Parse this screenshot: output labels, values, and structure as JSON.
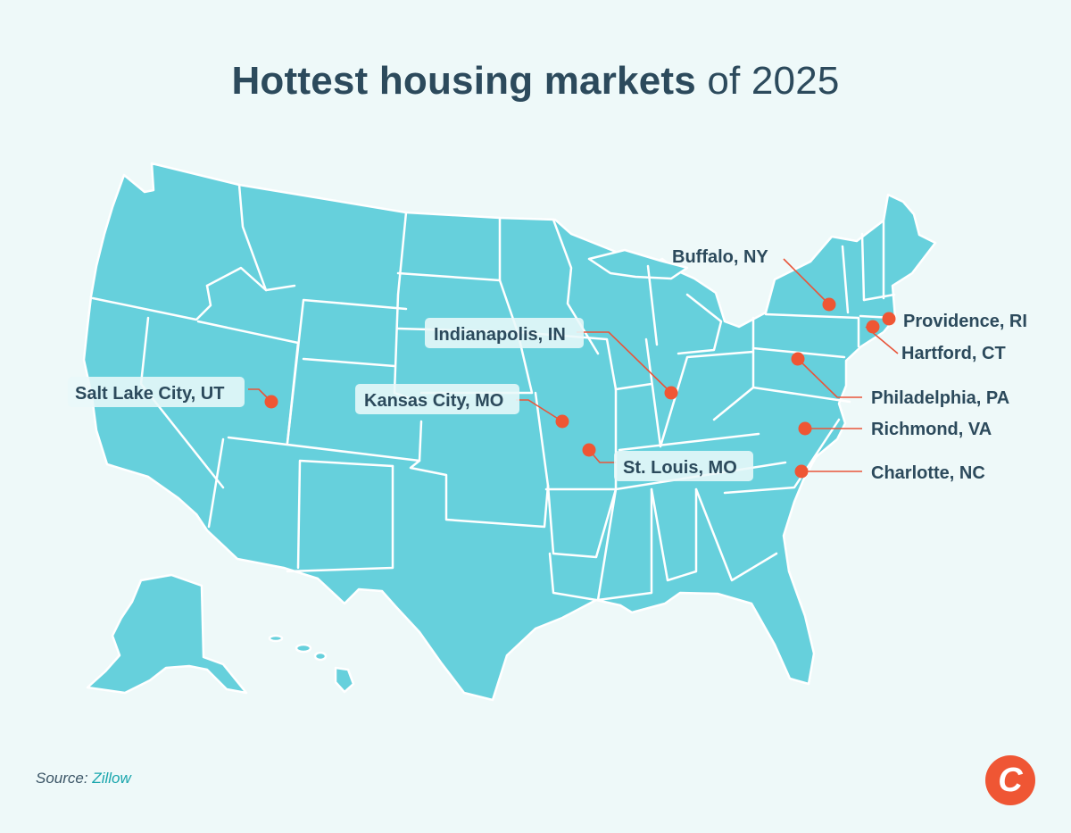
{
  "title": {
    "bold": "Hottest housing markets",
    "rest": "of 2025"
  },
  "markets": [
    {
      "label": "Buffalo, NY"
    },
    {
      "label": "Providence, RI"
    },
    {
      "label": "Hartford, CT"
    },
    {
      "label": "Indianapolis, IN"
    },
    {
      "label": "Philadelphia, PA"
    },
    {
      "label": "Salt Lake City, UT"
    },
    {
      "label": "Kansas City, MO"
    },
    {
      "label": "Richmond, VA"
    },
    {
      "label": "St. Louis, MO"
    },
    {
      "label": "Charlotte, NC"
    }
  ],
  "source": {
    "prefix": "Source:",
    "name": "Zillow"
  },
  "logo": {
    "letter": "C"
  },
  "colors": {
    "background": "#eef9f9",
    "land": "#66d0dc",
    "marker": "#ef5634",
    "text": "#2c4a5c",
    "source_link": "#1aa6ad"
  }
}
